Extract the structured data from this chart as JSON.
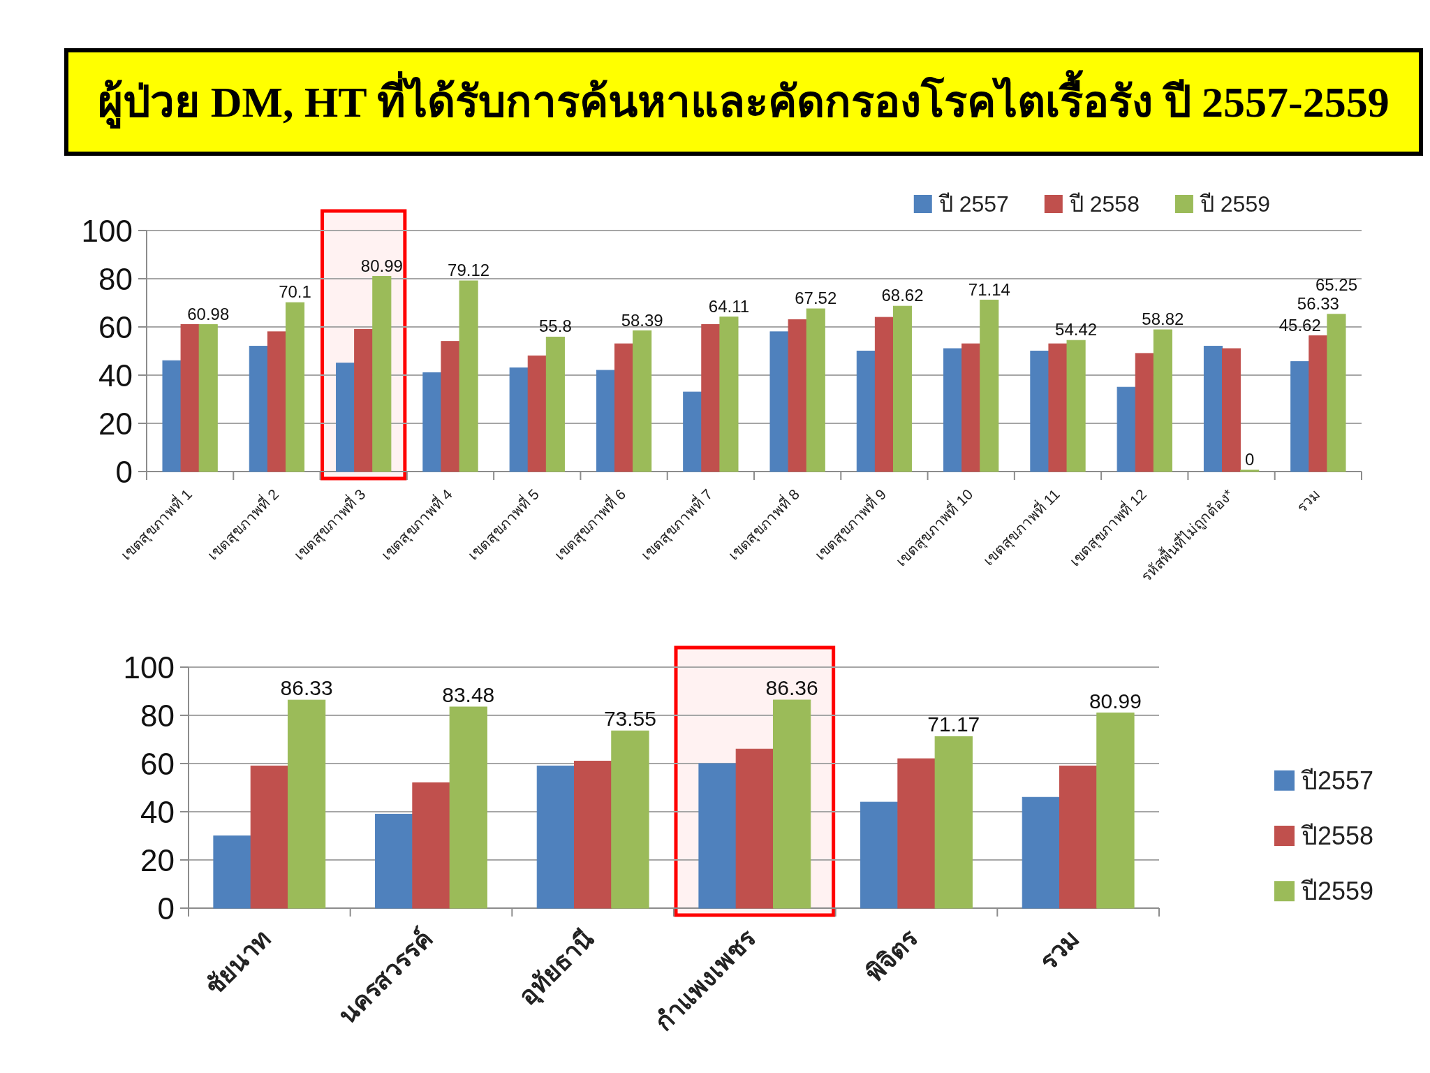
{
  "chart_data": [
    {
      "type": "bar",
      "title": "ผู้ป่วย DM, HT ที่ได้รับการค้นหาและคัดกรองโรคไตเรื้อรัง ปี 2557-2559",
      "categories": [
        "เขตสุขภาพที่ 1",
        "เขตสุขภาพที่ 2",
        "เขตสุขภาพที่ 3",
        "เขตสุขภาพที่ 4",
        "เขตสุขภาพที่ 5",
        "เขตสุขภาพที่ 6",
        "เขตสุขภาพที่ 7",
        "เขตสุขภาพที่ 8",
        "เขตสุขภาพที่ 9",
        "เขตสุขภาพที่ 10",
        "เขตสุขภาพที่ 11",
        "เขตสุขภาพที่ 12",
        "รหัสพื้นที่ไม่ถูกต้อง*",
        "รวม"
      ],
      "series": [
        {
          "name": "ปี 2557",
          "color": "#4f81bd",
          "values": [
            46,
            52,
            45,
            41,
            43,
            42,
            33,
            58,
            50,
            51,
            50,
            35,
            52,
            45.62
          ],
          "value_labels": [
            null,
            null,
            null,
            null,
            null,
            null,
            null,
            null,
            null,
            null,
            null,
            null,
            null,
            "45.62"
          ]
        },
        {
          "name": "ปี 2558",
          "color": "#c0504d",
          "values": [
            61,
            58,
            59,
            54,
            48,
            53,
            61,
            63,
            64,
            53,
            53,
            49,
            51,
            56.33
          ],
          "value_labels": [
            null,
            null,
            null,
            null,
            null,
            null,
            null,
            null,
            null,
            null,
            null,
            null,
            null,
            "56.33"
          ]
        },
        {
          "name": "ปี 2559",
          "color": "#9bbb59",
          "values": [
            60.98,
            70.1,
            80.99,
            79.12,
            55.8,
            58.39,
            64.11,
            67.52,
            68.62,
            71.14,
            54.42,
            58.82,
            0,
            65.25
          ],
          "value_labels": [
            "60.98",
            "70.1",
            "80.99",
            "79.12",
            "55.8",
            "58.39",
            "64.11",
            "67.52",
            "68.62",
            "71.14",
            "54.42",
            "58.82",
            "0",
            "65.25"
          ]
        }
      ],
      "ylim": [
        0,
        100
      ],
      "yticks": [
        0,
        20,
        40,
        60,
        80,
        100
      ],
      "grid": "y",
      "legend": "top right",
      "bands": [
        {
          "axis": "x",
          "from": "เขตสุขภาพที่ 3",
          "to": "เขตสุขภาพที่ 3",
          "color": "#ff0000"
        }
      ]
    },
    {
      "type": "bar",
      "categories": [
        "ชัยนาท",
        "นครสวรรค์",
        "อุทัยธานี",
        "กำแพงเพชร",
        "พิจิตร",
        "รวม"
      ],
      "series": [
        {
          "name": "ปี2557",
          "color": "#4f81bd",
          "values": [
            30,
            39,
            59,
            60,
            44,
            46
          ]
        },
        {
          "name": "ปี2558",
          "color": "#c0504d",
          "values": [
            59,
            52,
            61,
            66,
            62,
            59
          ]
        },
        {
          "name": "ปี2559",
          "color": "#9bbb59",
          "values": [
            86.33,
            83.48,
            73.55,
            86.36,
            71.17,
            80.99
          ],
          "value_labels": [
            "86.33",
            "83.48",
            "73.55",
            "86.36",
            "71.17",
            "80.99"
          ]
        }
      ],
      "ylim": [
        0,
        100
      ],
      "yticks": [
        0,
        20,
        40,
        60,
        80,
        100
      ],
      "grid": "y",
      "legend": "right",
      "bands": [
        {
          "axis": "x",
          "from": "กำแพงเพชร",
          "to": "กำแพงเพชร",
          "color": "#ff0000"
        }
      ]
    }
  ]
}
